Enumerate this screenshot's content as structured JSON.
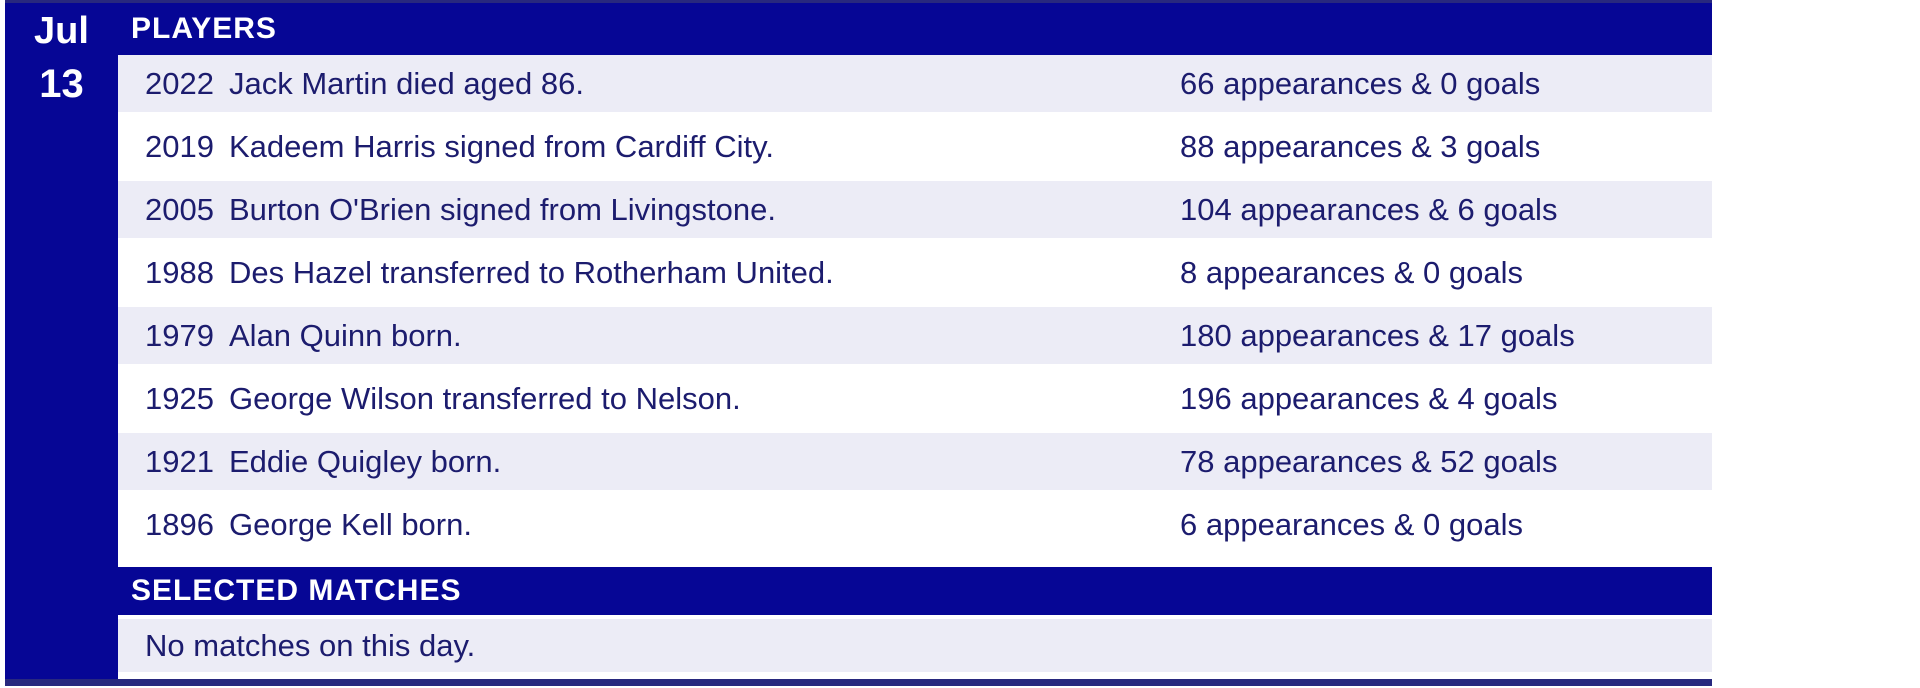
{
  "calendar": {
    "month": "Jul",
    "day": "13"
  },
  "sections": {
    "players": {
      "title": "PLAYERS",
      "rows": [
        {
          "year": "2022",
          "event": "Jack Martin died aged 86.",
          "stats": "66 appearances & 0 goals"
        },
        {
          "year": "2019",
          "event": "Kadeem Harris signed from Cardiff City.",
          "stats": "88 appearances & 3 goals"
        },
        {
          "year": "2005",
          "event": "Burton O'Brien signed from Livingstone.",
          "stats": "104 appearances & 6 goals"
        },
        {
          "year": "1988",
          "event": "Des Hazel transferred to Rotherham United.",
          "stats": "8 appearances & 0 goals"
        },
        {
          "year": "1979",
          "event": "Alan Quinn born.",
          "stats": "180 appearances & 17 goals"
        },
        {
          "year": "1925",
          "event": "George Wilson transferred to Nelson.",
          "stats": "196 appearances & 4 goals"
        },
        {
          "year": "1921",
          "event": "Eddie Quigley born.",
          "stats": "78 appearances & 52 goals"
        },
        {
          "year": "1896",
          "event": "George Kell born.",
          "stats": "6 appearances & 0 goals"
        }
      ]
    },
    "matches": {
      "title": "SELECTED MATCHES",
      "empty_message": "No matches on this day."
    }
  },
  "colors": {
    "primary_blue": "#060695",
    "row_lavender": "#ECECF6",
    "text_navy": "#1C1C6E",
    "border_navy": "#28287E"
  }
}
